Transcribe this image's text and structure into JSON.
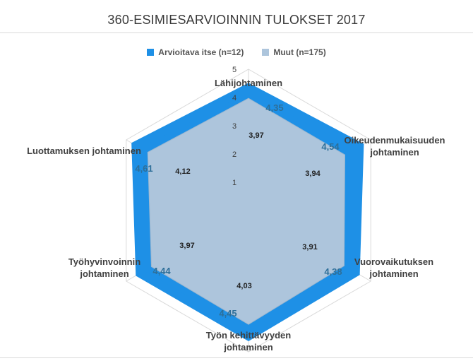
{
  "chart_data": {
    "type": "radar",
    "title": "360-ESIMIESARVIOINNIN TULOKSET 2017",
    "axes": [
      [
        "Lähijohtaminen"
      ],
      [
        "Oikeudenmukaisuuden",
        "johtaminen"
      ],
      [
        "Vuorovaikutuksen",
        "johtaminen"
      ],
      [
        "Työn kehittävyyden",
        "johtaminen"
      ],
      [
        "Työhyvinvoinnin",
        "johtaminen"
      ],
      [
        "Luottamuksen johtaminen"
      ]
    ],
    "rlim": [
      0,
      5
    ],
    "ticks": [
      "1",
      "2",
      "3",
      "4",
      "5"
    ],
    "legend_position": "top",
    "series": [
      {
        "name": "Arvioitava itse (n=12)",
        "color": "#1e90e6",
        "values": [
          4.35,
          4.54,
          4.38,
          4.45,
          4.44,
          4.61
        ],
        "labels": [
          "4,35",
          "4,54",
          "4,38",
          "4,45",
          "4,44",
          "4,61"
        ]
      },
      {
        "name": "Muut (n=175)",
        "color": "#adc5dc",
        "values": [
          3.97,
          3.94,
          3.91,
          4.03,
          3.97,
          4.12
        ],
        "labels": [
          "3,97",
          "3,94",
          "3,91",
          "4,03",
          "3,97",
          "4,12"
        ]
      }
    ],
    "colors": {
      "self_label": "#2e6f99",
      "other_label": "#1f1f1f",
      "axis_label": "#404040",
      "grid": "#d9d9d9"
    }
  }
}
